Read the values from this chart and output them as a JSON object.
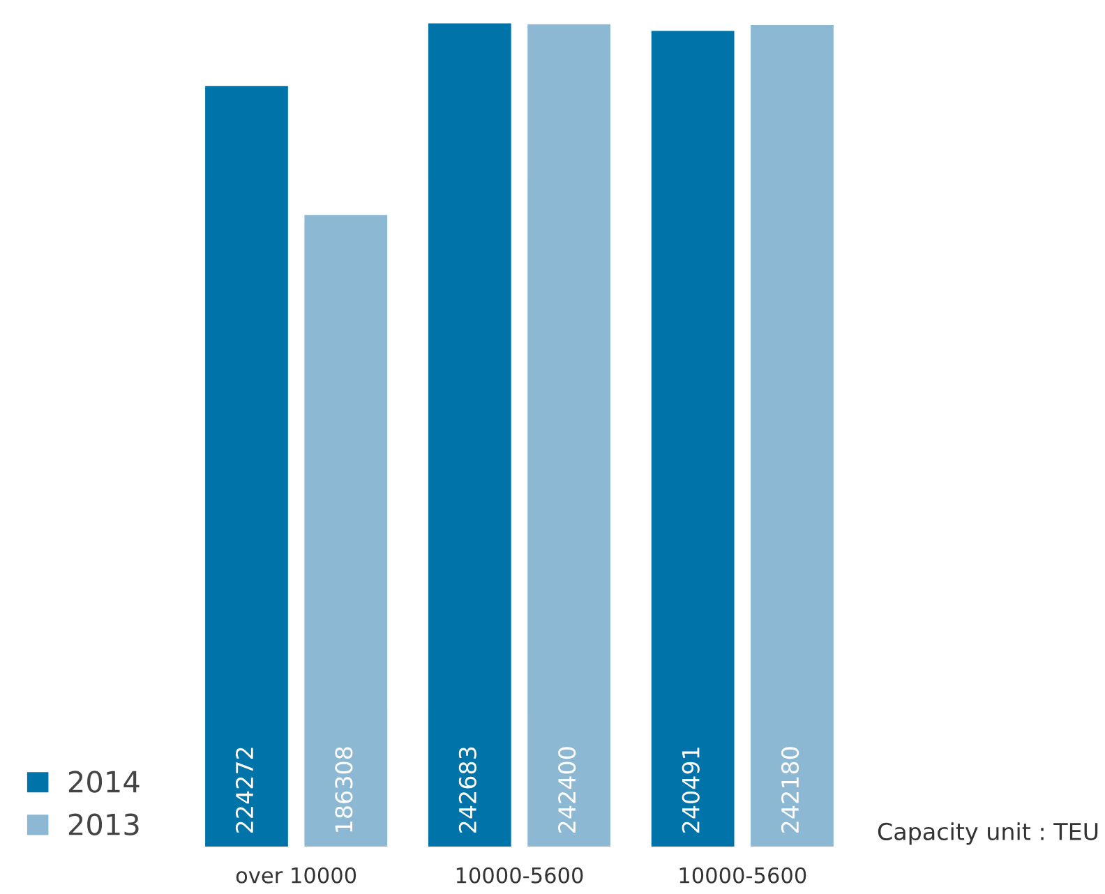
{
  "chart_data": {
    "type": "bar",
    "categories": [
      "over 10000",
      "10000-5600",
      "10000-5600"
    ],
    "series": [
      {
        "name": "2014",
        "color": "#0073a8",
        "values": [
          224272,
          242683,
          240491
        ]
      },
      {
        "name": "2013",
        "color": "#8db8d4",
        "values": [
          186308,
          242400,
          242180
        ]
      }
    ],
    "data_labels": true,
    "legend": "bottom left",
    "grid": false,
    "tick_labels": "x",
    "annotations": [
      "Capacity unit : TEU"
    ]
  }
}
